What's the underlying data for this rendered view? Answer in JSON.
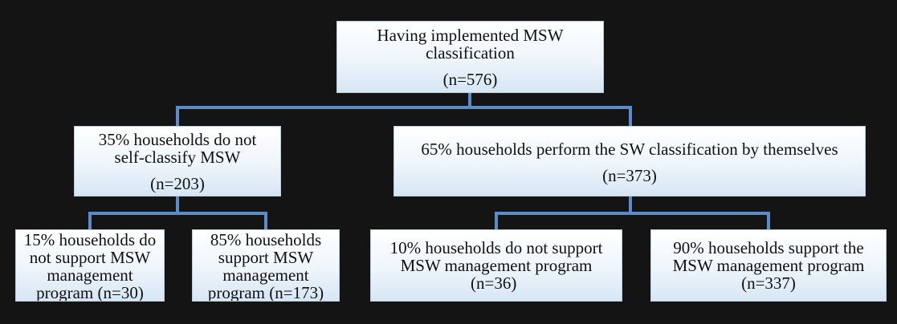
{
  "colors": {
    "background": "#141414",
    "connector": "#5b8cc8",
    "box_border": "#b9cde2"
  },
  "nodes": {
    "root": {
      "lines": [
        "Having implemented MSW",
        "classification"
      ],
      "count": "(n=576)"
    },
    "left": {
      "lines": [
        "35% households do not",
        "self-classify MSW"
      ],
      "count": "(n=203)"
    },
    "right": {
      "lines": [
        "65% households perform the SW classification by themselves"
      ],
      "count": "(n=373)"
    },
    "ll": {
      "lines": [
        "15% households do",
        "not support MSW",
        "management",
        "program (n=30)"
      ]
    },
    "lr": {
      "lines": [
        "85% households",
        "support MSW",
        "management",
        "program (n=173)"
      ]
    },
    "rl": {
      "lines": [
        "10% households do not support",
        "MSW management program",
        "(n=36)"
      ]
    },
    "rr": {
      "lines": [
        "90% households support the",
        "MSW management program",
        "(n=337)"
      ]
    }
  }
}
